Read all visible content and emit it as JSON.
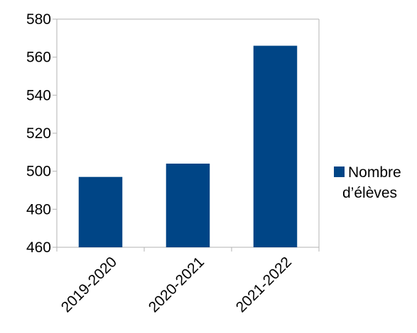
{
  "chart_data": {
    "type": "bar",
    "categories": [
      "2019-2020",
      "2020-2021",
      "2021-2022"
    ],
    "series": [
      {
        "name": "Nombre d’élèves",
        "name_lines": [
          "Nombre",
          "d’élèves"
        ],
        "values": [
          497,
          504,
          566
        ],
        "color": "#004586"
      }
    ],
    "title": "",
    "xlabel": "",
    "ylabel": "",
    "ylim": [
      460,
      580
    ],
    "yticks": [
      460,
      480,
      500,
      520,
      540,
      560,
      580
    ],
    "grid": false,
    "legend_position": "right"
  }
}
